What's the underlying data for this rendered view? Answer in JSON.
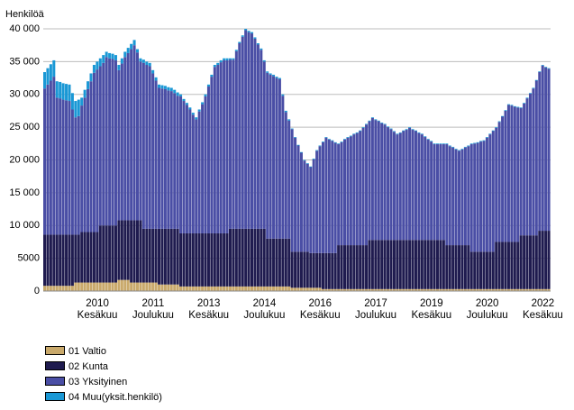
{
  "chart_data": {
    "type": "stacked_bar",
    "y_label": "Henkilöä",
    "categories": [
      null,
      null,
      null,
      null,
      null,
      null,
      null,
      null,
      null,
      null,
      null,
      null,
      null,
      null,
      null,
      null,
      null,
      "2010 Kesäkuu",
      null,
      null,
      null,
      null,
      null,
      null,
      null,
      null,
      null,
      null,
      null,
      null,
      null,
      null,
      null,
      null,
      null,
      "2011 Joulukuu",
      null,
      null,
      null,
      null,
      null,
      null,
      null,
      null,
      null,
      null,
      null,
      null,
      null,
      null,
      null,
      null,
      null,
      "2013 Kesäkuu",
      null,
      null,
      null,
      null,
      null,
      null,
      null,
      null,
      null,
      null,
      null,
      null,
      null,
      null,
      null,
      null,
      null,
      "2014 Joulukuu",
      null,
      null,
      null,
      null,
      null,
      null,
      null,
      null,
      null,
      null,
      null,
      null,
      null,
      null,
      null,
      null,
      null,
      "2016 Kesäkuu",
      null,
      null,
      null,
      null,
      null,
      null,
      null,
      null,
      null,
      null,
      null,
      null,
      null,
      null,
      null,
      null,
      null,
      "2017 Joulukuu",
      null,
      null,
      null,
      null,
      null,
      null,
      null,
      null,
      null,
      null,
      null,
      null,
      null,
      null,
      null,
      null,
      null,
      "2019 Kesäkuu",
      null,
      null,
      null,
      null,
      null,
      null,
      null,
      null,
      null,
      null,
      null,
      null,
      null,
      null,
      null,
      null,
      null,
      "2020 Joulukuu",
      null,
      null,
      null,
      null,
      null,
      null,
      null,
      null,
      null,
      null,
      null,
      null,
      null,
      null,
      null,
      null,
      null,
      "2022 Kesäkuu",
      null,
      null
    ],
    "series": [
      {
        "name": "01 Valtio",
        "color": "#c9a96b",
        "values": [
          800,
          800,
          800,
          800,
          800,
          800,
          800,
          800,
          800,
          800,
          1300,
          1300,
          1300,
          1300,
          1300,
          1300,
          1300,
          1300,
          1300,
          1300,
          1300,
          1300,
          1300,
          1300,
          1700,
          1700,
          1700,
          1700,
          1300,
          1300,
          1300,
          1300,
          1300,
          1300,
          1300,
          1300,
          1300,
          1000,
          1000,
          1000,
          1000,
          1000,
          1000,
          1000,
          700,
          700,
          700,
          700,
          700,
          700,
          700,
          700,
          700,
          700,
          700,
          700,
          700,
          700,
          700,
          700,
          700,
          700,
          700,
          700,
          700,
          700,
          700,
          700,
          700,
          700,
          700,
          700,
          700,
          700,
          700,
          700,
          700,
          700,
          700,
          700,
          500,
          500,
          500,
          500,
          500,
          500,
          500,
          500,
          500,
          500,
          300,
          300,
          300,
          300,
          300,
          300,
          300,
          300,
          300,
          300,
          300,
          300,
          300,
          300,
          300,
          300,
          300,
          300,
          300,
          300,
          300,
          300,
          300,
          300,
          300,
          300,
          300,
          300,
          300,
          300,
          300,
          300,
          300,
          300,
          300,
          300,
          300,
          300,
          300,
          300,
          300,
          300,
          300,
          300,
          300,
          300,
          300,
          300,
          300,
          300,
          300,
          300,
          300,
          300,
          300,
          300,
          300,
          300,
          300,
          300,
          300,
          300,
          300,
          300,
          300,
          300,
          300,
          300,
          300,
          300,
          300,
          300,
          300,
          300
        ]
      },
      {
        "name": "02 Kunta",
        "color": "#1f1b4f",
        "values": [
          7800,
          7800,
          7800,
          7800,
          7800,
          7800,
          7800,
          7800,
          7800,
          7800,
          7300,
          7300,
          7700,
          7700,
          7700,
          7700,
          7700,
          7700,
          8700,
          8700,
          8700,
          8700,
          8700,
          8700,
          9100,
          9100,
          9100,
          9100,
          9500,
          9500,
          9500,
          9500,
          8200,
          8200,
          8200,
          8200,
          8200,
          8500,
          8500,
          8500,
          8500,
          8500,
          8500,
          8500,
          8100,
          8100,
          8100,
          8100,
          8100,
          8100,
          8100,
          8100,
          8100,
          8100,
          8100,
          8100,
          8100,
          8100,
          8100,
          8100,
          8800,
          8800,
          8800,
          8800,
          8800,
          8800,
          8800,
          8800,
          8800,
          8800,
          8800,
          8800,
          7300,
          7300,
          7300,
          7300,
          7300,
          7300,
          7300,
          7300,
          5500,
          5500,
          5500,
          5500,
          5500,
          5500,
          5300,
          5300,
          5300,
          5300,
          5500,
          5500,
          5500,
          5500,
          5500,
          6700,
          6700,
          6700,
          6700,
          6700,
          6700,
          6700,
          6700,
          6700,
          6700,
          7500,
          7500,
          7500,
          7500,
          7500,
          7500,
          7500,
          7500,
          7500,
          7500,
          7500,
          7500,
          7500,
          7500,
          7500,
          7500,
          7500,
          7500,
          7500,
          7500,
          7500,
          7500,
          7500,
          7500,
          7500,
          6700,
          6700,
          6700,
          6700,
          6700,
          6700,
          6700,
          6700,
          5700,
          5700,
          5700,
          5700,
          5700,
          5700,
          5700,
          5700,
          7200,
          7200,
          7200,
          7200,
          7200,
          7200,
          7200,
          7200,
          8200,
          8200,
          8200,
          8200,
          8200,
          8200,
          8900,
          8900,
          8900,
          8900
        ]
      },
      {
        "name": "03 Yksityinen",
        "color": "#4a4ea5",
        "values": [
          22300,
          22900,
          23500,
          24100,
          20900,
          20800,
          20600,
          20500,
          20400,
          19100,
          17900,
          18100,
          19300,
          20500,
          21800,
          23000,
          24300,
          24800,
          24300,
          24800,
          25700,
          25500,
          25400,
          25200,
          22900,
          23900,
          24900,
          25500,
          26100,
          26700,
          25600,
          24200,
          25300,
          25000,
          24800,
          23700,
          22600,
          21500,
          21400,
          21300,
          21100,
          21000,
          20700,
          20300,
          20900,
          20200,
          19600,
          18900,
          18100,
          17400,
          18600,
          19700,
          20900,
          22400,
          23900,
          25400,
          25700,
          26100,
          26400,
          26400,
          25800,
          25800,
          27100,
          28300,
          29300,
          30300,
          30000,
          29800,
          29000,
          28100,
          27300,
          25500,
          25300,
          25000,
          24800,
          24500,
          24300,
          21800,
          19300,
          18000,
          18700,
          17400,
          16200,
          15100,
          13900,
          13400,
          13100,
          14300,
          15600,
          16300,
          16900,
          17600,
          17300,
          17100,
          16800,
          15400,
          15700,
          16100,
          16400,
          16600,
          16900,
          17100,
          17400,
          17900,
          18400,
          18100,
          18600,
          18300,
          18100,
          17800,
          17600,
          17200,
          16900,
          16500,
          16100,
          16300,
          16600,
          16800,
          17100,
          16800,
          16600,
          16300,
          16100,
          15700,
          15300,
          15000,
          14600,
          14600,
          14600,
          14600,
          15400,
          15100,
          14900,
          14600,
          14400,
          14600,
          14900,
          15100,
          16400,
          16500,
          16600,
          16800,
          16900,
          17400,
          17900,
          18400,
          17400,
          18300,
          19100,
          20000,
          20900,
          20800,
          20600,
          20500,
          19400,
          20100,
          20900,
          21600,
          22400,
          23600,
          24200,
          25200,
          24900,
          24700
        ]
      },
      {
        "name": "04 Muu(yksit.henkilö)",
        "color": "#1a98d5",
        "values": [
          2500,
          2500,
          2500,
          2500,
          2500,
          2500,
          2500,
          2500,
          2500,
          2500,
          2500,
          2500,
          1200,
          1200,
          1200,
          1200,
          1200,
          1200,
          1200,
          1200,
          800,
          800,
          800,
          800,
          800,
          800,
          800,
          800,
          800,
          800,
          500,
          500,
          500,
          500,
          500,
          500,
          500,
          500,
          500,
          500,
          500,
          500,
          500,
          500,
          300,
          300,
          300,
          300,
          300,
          300,
          300,
          300,
          300,
          300,
          300,
          300,
          300,
          300,
          300,
          300,
          200,
          200,
          200,
          200,
          200,
          200,
          200,
          200,
          200,
          200,
          200,
          200,
          200,
          200,
          200,
          200,
          200,
          200,
          200,
          200,
          100,
          100,
          100,
          100,
          100,
          100,
          100,
          100,
          100,
          100,
          100,
          100,
          100,
          100,
          100,
          100,
          100,
          100,
          100,
          100,
          100,
          100,
          100,
          100,
          100,
          100,
          100,
          100,
          100,
          100,
          100,
          100,
          100,
          100,
          100,
          100,
          100,
          100,
          100,
          100,
          100,
          100,
          100,
          100,
          100,
          100,
          100,
          100,
          100,
          100,
          100,
          100,
          100,
          100,
          100,
          100,
          100,
          100,
          100,
          100,
          100,
          100,
          100,
          100,
          100,
          100,
          100,
          100,
          100,
          100,
          100,
          100,
          100,
          100,
          100,
          100,
          100,
          100,
          100,
          100,
          100,
          100,
          100,
          100
        ]
      }
    ],
    "ylim": [
      0,
      40000
    ],
    "yticks": [
      0,
      {
        "value": 5000,
        "label": "5000"
      },
      {
        "value": 10000,
        "label": "10 000"
      },
      {
        "value": 15000,
        "label": "15 000"
      },
      {
        "value": 20000,
        "label": "20 000"
      },
      {
        "value": 25000,
        "label": "25 000"
      },
      {
        "value": 30000,
        "label": "30 000"
      },
      {
        "value": 35000,
        "label": "35 000"
      },
      {
        "value": 40000,
        "label": "40 000"
      }
    ],
    "grid": true,
    "legend": "bottom-left"
  }
}
